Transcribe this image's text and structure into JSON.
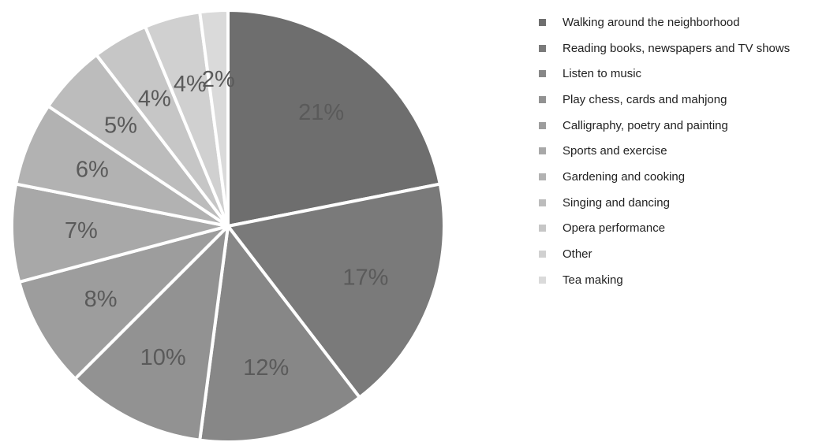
{
  "chart_data": {
    "type": "pie",
    "title": "",
    "legend_position": "right",
    "slices": [
      {
        "label": "Walking around the neighborhood",
        "value": 21,
        "display": "21%",
        "color": "#6e6e6e"
      },
      {
        "label": "Reading books, newspapers and TV shows",
        "value": 17,
        "display": "17%",
        "color": "#7a7a7a"
      },
      {
        "label": "Listen to music",
        "value": 12,
        "display": "12%",
        "color": "#878787"
      },
      {
        "label": "Play chess, cards and mahjong",
        "value": 10,
        "display": "10%",
        "color": "#929292"
      },
      {
        "label": "Calligraphy, poetry and painting",
        "value": 8,
        "display": "8%",
        "color": "#9d9d9d"
      },
      {
        "label": "Sports and exercise",
        "value": 7,
        "display": "7%",
        "color": "#a8a8a8"
      },
      {
        "label": "Gardening and cooking",
        "value": 6,
        "display": "6%",
        "color": "#b2b2b2"
      },
      {
        "label": "Singing and dancing",
        "value": 5,
        "display": "5%",
        "color": "#bcbcbc"
      },
      {
        "label": "Opera performance",
        "value": 4,
        "display": "4%",
        "color": "#c6c6c6"
      },
      {
        "label": "Other",
        "value": 4,
        "display": "4%",
        "color": "#d0d0d0"
      },
      {
        "label": "Tea making",
        "value": 2,
        "display": "2%",
        "color": "#dadada"
      }
    ]
  }
}
